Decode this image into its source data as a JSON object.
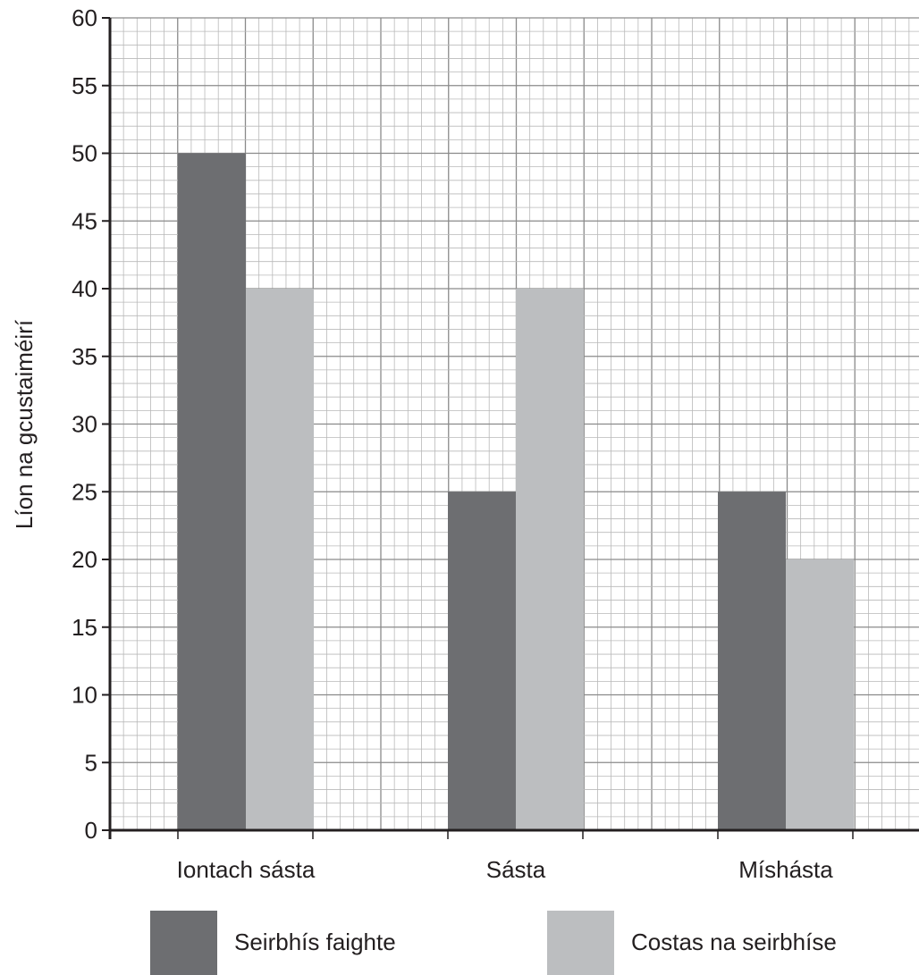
{
  "chart_data": {
    "type": "bar",
    "xlabel": "",
    "ylabel": "Líon na gcustaiméirí",
    "ylim": [
      0,
      60
    ],
    "yticks": [
      0,
      5,
      10,
      15,
      20,
      25,
      30,
      35,
      40,
      45,
      50,
      55,
      60
    ],
    "grid": true,
    "legend_position": "bottom",
    "categories": [
      "Iontach sásta",
      "Sásta",
      "Míshásta"
    ],
    "series": [
      {
        "name": "Seirbhís faighte",
        "color": "#6d6e71",
        "values": [
          50,
          25,
          25
        ]
      },
      {
        "name": "Costas na seirbhíse",
        "color": "#bcbec0",
        "values": [
          40,
          40,
          20
        ]
      }
    ]
  }
}
